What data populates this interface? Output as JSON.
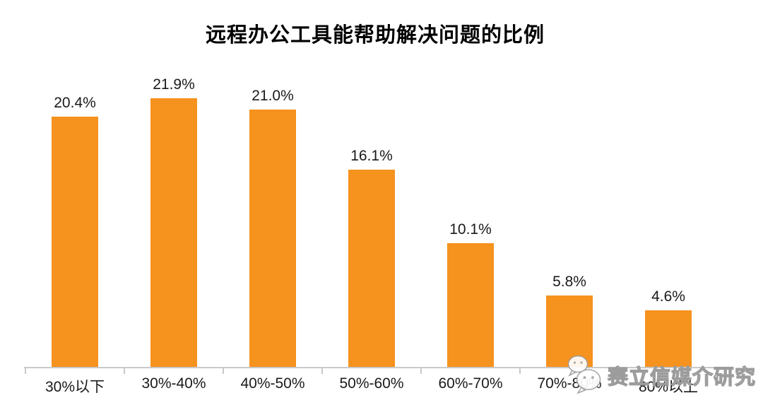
{
  "title": "远程办公工具能帮助解决问题的比例",
  "chart_data": {
    "type": "bar",
    "title": "远程办公工具能帮助解决问题的比例",
    "categories": [
      "30%以下",
      "30%-40%",
      "40%-50%",
      "50%-60%",
      "60%-70%",
      "70%-80%",
      "80%以上"
    ],
    "values": [
      20.4,
      21.9,
      21.0,
      16.1,
      10.1,
      5.8,
      4.6
    ],
    "value_labels": [
      "20.4%",
      "21.9%",
      "21.0%",
      "16.1%",
      "10.1%",
      "5.8%",
      "4.6%"
    ],
    "xlabel": "",
    "ylabel": "",
    "ylim": [
      0,
      25
    ],
    "grid": false,
    "legend": false,
    "bar_color": "#F6921E",
    "axis_color": "#C9C9C9",
    "text_color": "#1A1A1A",
    "title_color": "#000000"
  },
  "watermark": {
    "text": "赛立信媒介研究",
    "icon": "wechat-chat-bubbles-icon"
  }
}
